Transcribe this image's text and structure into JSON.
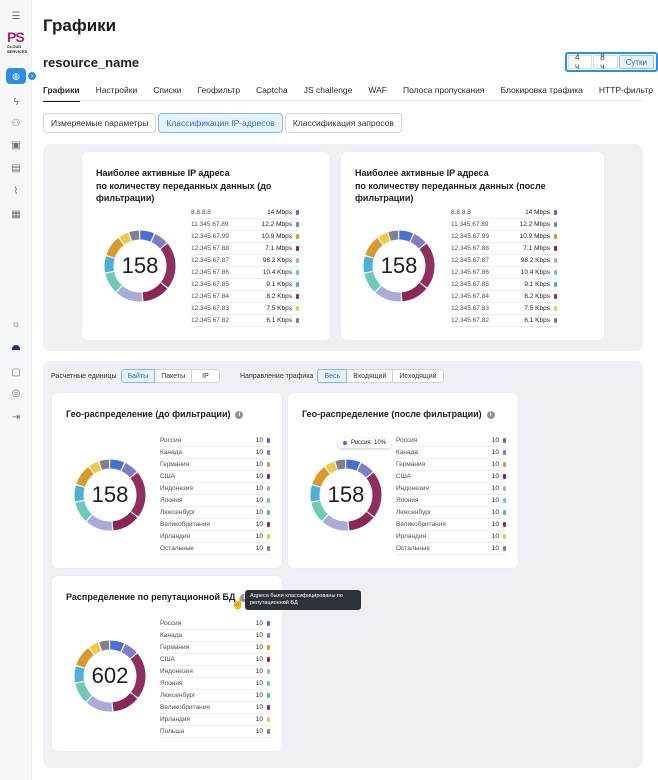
{
  "app": {
    "page_title": "Графики",
    "resource_name": "resource_name",
    "logo_text": "PS",
    "logo_sub": "CLOUD SERVICES"
  },
  "time_range": {
    "options": [
      "4 ч",
      "8 ч",
      "Сутки"
    ],
    "active": "Сутки"
  },
  "tabs": [
    "Графики",
    "Настройки",
    "Списки",
    "Геофильтр",
    "Captcha",
    "JS challenge",
    "WAF",
    "Полоса пропускания",
    "Блокировка трафика",
    "HTTP-фильтр"
  ],
  "subtabs": [
    "Измеряемые параметры",
    "Классификация IP-адресов",
    "Классификация запросов"
  ],
  "colors": {
    "accent": "#2c8ee4",
    "segments": [
      "#4b6fd0",
      "#7d7fc4",
      "#d99a2b",
      "#8b2757",
      "#a9acd6",
      "#6ec9b6",
      "#4db1d6",
      "#8e2f5e",
      "#f0c64b",
      "#7f7f8f"
    ]
  },
  "ip_before": {
    "title": "Наиболее активные IP адреса по количеству переданных данных (до фильтрации)",
    "title_line1": "Наиболее активные IP адреса",
    "title_line2": "по количеству переданных данных (до фильтрации)",
    "total": "158",
    "rows": [
      {
        "label": "8.8.8.8",
        "value": "14 Mbps"
      },
      {
        "label": "11.345.67.89",
        "value": "12.2 Mbps"
      },
      {
        "label": "12.345.67.99",
        "value": "10.9 Mbps"
      },
      {
        "label": "12.345.67.88",
        "value": "7.1 Mbps"
      },
      {
        "label": "12.345.67.87",
        "value": "98.2 Kbps"
      },
      {
        "label": "12.345.67.86",
        "value": "10.4 Kbps"
      },
      {
        "label": "12.345.67.85",
        "value": "9.1 Kbps"
      },
      {
        "label": "12.345.67.84",
        "value": "8.2 Kbps"
      },
      {
        "label": "12.345.67.83",
        "value": "7.5 Kbps"
      },
      {
        "label": "12.345.67.82",
        "value": "6.1 Kbps"
      }
    ]
  },
  "ip_after": {
    "title_line1": "Наиболее активные IP адреса",
    "title_line2": "по количеству переданных данных (после фильтрации)",
    "total": "158",
    "rows": [
      {
        "label": "8.8.8.8",
        "value": "14 Mbps"
      },
      {
        "label": "11.345.67.89",
        "value": "12.2 Mbps"
      },
      {
        "label": "12.345.67.99",
        "value": "10.9 Mbps"
      },
      {
        "label": "12.345.67.88",
        "value": "7.1 Mbps"
      },
      {
        "label": "12.345.67.87",
        "value": "98.2 Kbps"
      },
      {
        "label": "12.345.67.86",
        "value": "10.4 Kbps"
      },
      {
        "label": "12.345.67.85",
        "value": "9.1 Kbps"
      },
      {
        "label": "12.345.67.84",
        "value": "8.2 Kbps"
      },
      {
        "label": "12.345.67.83",
        "value": "7.5 Kbps"
      },
      {
        "label": "12.345.67.82",
        "value": "6.1 Kbps"
      }
    ]
  },
  "controls": {
    "units_label": "Расчетные единицы",
    "units": [
      "Байты",
      "Пакеты",
      "IP"
    ],
    "units_active": "Байты",
    "direction_label": "Направление трафика",
    "direction": [
      "Весь",
      "Входящий",
      "Исходящий"
    ],
    "direction_active": "Весь"
  },
  "geo_before": {
    "title": "Гео-распределение (до фильтрации)",
    "total": "158",
    "rows": [
      {
        "label": "Россия",
        "value": "10"
      },
      {
        "label": "Канада",
        "value": "10"
      },
      {
        "label": "Германия",
        "value": "10"
      },
      {
        "label": "США",
        "value": "10"
      },
      {
        "label": "Индонезия",
        "value": "10"
      },
      {
        "label": "Япония",
        "value": "10"
      },
      {
        "label": "Люксенбург",
        "value": "10"
      },
      {
        "label": "Великобритания",
        "value": "10"
      },
      {
        "label": "Ирландия",
        "value": "10"
      },
      {
        "label": "Остальные",
        "value": "10"
      }
    ]
  },
  "geo_after": {
    "title": "Гео-распределение (после фильтрации)",
    "total": "158",
    "tooltip_label": "Россия:",
    "tooltip_value": "10%",
    "rows": [
      {
        "label": "Россия",
        "value": "10"
      },
      {
        "label": "Канада",
        "value": "10"
      },
      {
        "label": "Германия",
        "value": "10"
      },
      {
        "label": "США",
        "value": "10"
      },
      {
        "label": "Индонезия",
        "value": "10"
      },
      {
        "label": "Япония",
        "value": "10"
      },
      {
        "label": "Люксенбург",
        "value": "10"
      },
      {
        "label": "Великобритания",
        "value": "10"
      },
      {
        "label": "Ирландия",
        "value": "10"
      },
      {
        "label": "Остальные",
        "value": "10"
      }
    ]
  },
  "reputation": {
    "title": "Распределение по репутационной БД",
    "total": "602",
    "tooltip": "Адреса были классифицированы по репутационной БД",
    "rows": [
      {
        "label": "Россия",
        "value": "10"
      },
      {
        "label": "Канада",
        "value": "10"
      },
      {
        "label": "Германия",
        "value": "10"
      },
      {
        "label": "США",
        "value": "10"
      },
      {
        "label": "Индонезия",
        "value": "10"
      },
      {
        "label": "Япония",
        "value": "10"
      },
      {
        "label": "Люксенбург",
        "value": "10"
      },
      {
        "label": "Великобритания",
        "value": "10"
      },
      {
        "label": "Ирландия",
        "value": "10"
      },
      {
        "label": "Польша",
        "value": "10"
      }
    ]
  }
}
